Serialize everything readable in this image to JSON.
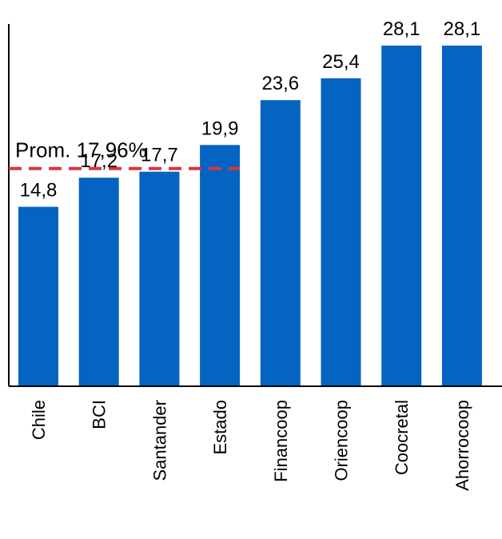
{
  "chart_data": {
    "type": "bar",
    "categories": [
      "Chile",
      "BCI",
      "Santander",
      "Estado",
      "Financoop",
      "Oriencoop",
      "Coocretal",
      "Ahorrocoop"
    ],
    "values": [
      14.8,
      17.2,
      17.7,
      19.9,
      23.6,
      25.4,
      28.1,
      28.1
    ],
    "value_labels": [
      "14,8",
      "17,2",
      "17,7",
      "19,9",
      "23,6",
      "25,4",
      "28,1",
      "28,1"
    ],
    "ylim": [
      0,
      28.1
    ],
    "bar_color": "#0563C1",
    "grid": false,
    "reference_line": {
      "value": 17.96,
      "label": "Prom. 17,96%",
      "color": "#D9363E",
      "style": "dashed"
    }
  }
}
